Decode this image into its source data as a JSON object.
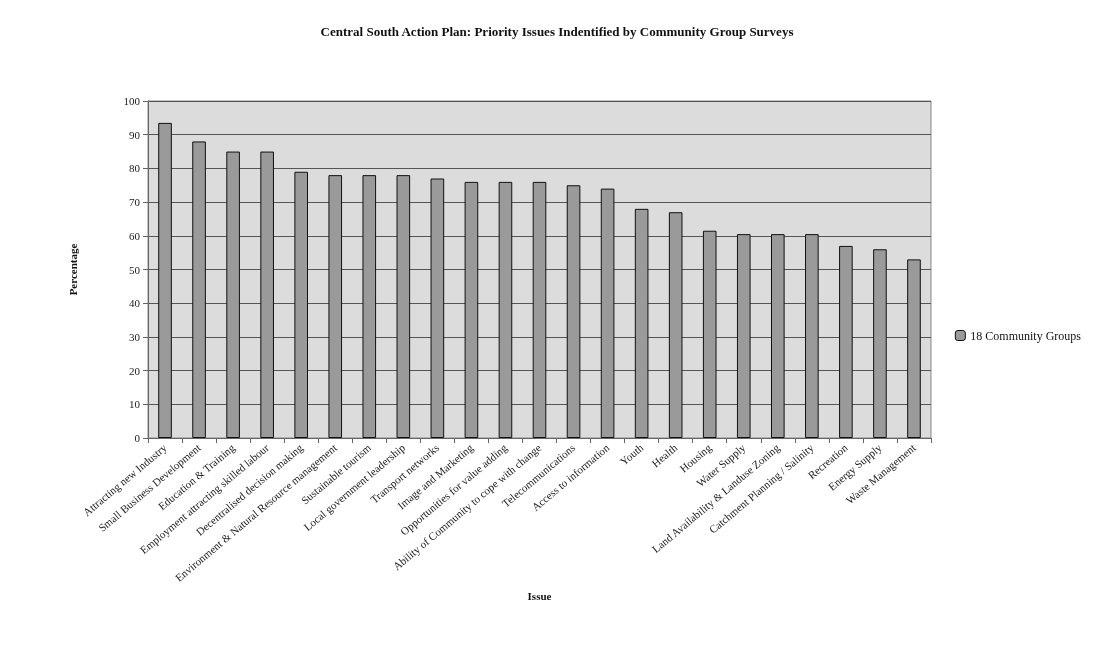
{
  "chart_data": {
    "type": "bar",
    "title": "Central South Action Plan: Priority Issues Indentified by Community Group Surveys",
    "xlabel": "Issue",
    "ylabel": "Percentage",
    "categories": [
      "Attracting new Industry",
      "Small Business Development",
      "Education & Training",
      "Employment attracting skilled labour",
      "Decentralised decision making",
      "Environment & Natural Resource management",
      "Sustainable tourism",
      "Local government leadership",
      "Transport networks",
      "Image and Marketing",
      "Opportunities for value adding",
      "Ability of Community to cope with change",
      "Telecommunications",
      "Access to information",
      "Youth",
      "Health",
      "Housing",
      "Water Supply",
      "Land Availability & Landuse Zoning",
      "Catchment Planning / Salinity",
      "Recreation",
      "Energy Supply",
      "Waste Management"
    ],
    "series": [
      {
        "name": "18 Community Groups",
        "color": "#9a9a9a",
        "values": [
          93.5,
          88,
          85,
          85,
          79,
          78,
          78,
          78,
          77,
          76,
          76,
          76,
          75,
          74,
          68,
          67,
          61.5,
          60.5,
          60.5,
          60.5,
          57,
          56,
          53
        ]
      }
    ],
    "ylim": [
      0,
      100
    ],
    "yticks": [
      0,
      10,
      20,
      30,
      40,
      50,
      60,
      70,
      80,
      90,
      100
    ],
    "grid": "y",
    "legend": "right"
  }
}
